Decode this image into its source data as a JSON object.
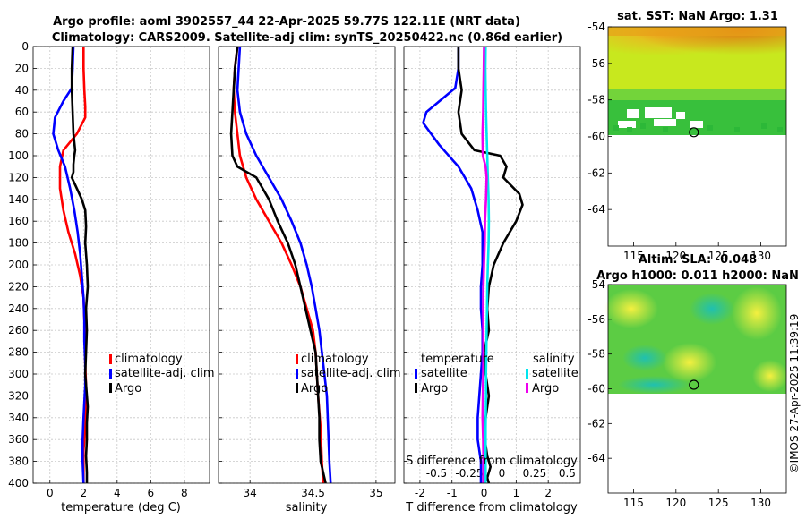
{
  "title_line1": "Argo profile: aoml 3902557_44 22-Apr-2025 59.77S 122.11E (NRT data)",
  "title_line2": "Climatology: CARS2009. Satellite-adj clim: synTS_20250422.nc (0.86d earlier)",
  "footer": "©IMOS 27-Apr-2025 11:39:19",
  "colors": {
    "climatology": "#ff0000",
    "satellite": "#0000ff",
    "argo": "#000000",
    "sal_satellite": "#00e5ee",
    "sal_argo": "#ee00ee"
  },
  "chart_data": [
    {
      "id": "temperature",
      "type": "line",
      "xlabel": "temperature (deg C)",
      "ylabel": "",
      "xlim": [
        -1,
        9.5
      ],
      "ylim": [
        400,
        0
      ],
      "xticks": [
        0,
        2,
        4,
        6,
        8
      ],
      "xtick_labels": [
        "0",
        "2",
        "4",
        "6",
        "8"
      ],
      "yticks": [
        0,
        20,
        40,
        60,
        80,
        100,
        120,
        140,
        160,
        180,
        200,
        220,
        240,
        260,
        280,
        300,
        320,
        340,
        360,
        380,
        400
      ],
      "grid": true,
      "legend": {
        "placement": "right-middle",
        "entries": [
          "climatology",
          "satellite-adj. clim",
          "Argo"
        ]
      },
      "series": [
        {
          "name": "climatology",
          "color": "#ff0000",
          "x": [
            2.0,
            2.0,
            2.05,
            2.1,
            2.1,
            1.6,
            0.8,
            0.6,
            0.6,
            0.8,
            1.1,
            1.5,
            1.8,
            2.0,
            2.05,
            2.1,
            2.1,
            2.15,
            2.15,
            2.1,
            2.05,
            2.0,
            2.0,
            2.0
          ],
          "y": [
            0,
            20,
            40,
            55,
            65,
            80,
            95,
            110,
            130,
            150,
            170,
            190,
            210,
            230,
            250,
            270,
            290,
            310,
            330,
            350,
            360,
            370,
            385,
            400
          ]
        },
        {
          "name": "satellite-adj. clim",
          "color": "#0000ff",
          "x": [
            1.4,
            1.35,
            1.3,
            0.8,
            0.3,
            0.2,
            0.5,
            0.9,
            1.2,
            1.45,
            1.65,
            1.8,
            1.9,
            2.0,
            2.05,
            2.05,
            2.1,
            2.1,
            2.0,
            1.95,
            1.95,
            2.0
          ],
          "y": [
            0,
            20,
            38,
            50,
            65,
            80,
            95,
            110,
            130,
            150,
            170,
            190,
            210,
            230,
            250,
            270,
            290,
            310,
            340,
            360,
            380,
            400
          ]
        },
        {
          "name": "Argo",
          "color": "#000000",
          "x": [
            1.35,
            1.3,
            1.3,
            1.35,
            1.4,
            1.5,
            1.45,
            1.4,
            1.4,
            1.3,
            1.6,
            1.9,
            2.1,
            2.15,
            2.1,
            2.2,
            2.25,
            2.15,
            2.2,
            2.15,
            2.1,
            2.25,
            2.2,
            2.2,
            2.15,
            2.2,
            2.2
          ],
          "y": [
            0,
            20,
            40,
            60,
            80,
            95,
            100,
            108,
            115,
            120,
            130,
            140,
            150,
            165,
            180,
            200,
            220,
            240,
            260,
            280,
            300,
            330,
            345,
            360,
            375,
            390,
            400
          ]
        }
      ]
    },
    {
      "id": "salinity",
      "type": "line",
      "xlabel": "salinity",
      "xlim": [
        33.75,
        35.15
      ],
      "ylim": [
        400,
        0
      ],
      "xticks": [
        34,
        34.5,
        35
      ],
      "xtick_labels": [
        "34",
        "34.5",
        "35"
      ],
      "grid": true,
      "legend": {
        "placement": "right-middle",
        "entries": [
          "climatology",
          "satellite-adj. clim",
          "Argo"
        ]
      },
      "series": [
        {
          "name": "climatology",
          "color": "#ff0000",
          "x": [
            33.9,
            33.88,
            33.87,
            33.88,
            33.9,
            33.92,
            33.97,
            34.05,
            34.15,
            34.25,
            34.33,
            34.4,
            34.45,
            34.5,
            34.52,
            34.53,
            34.54,
            34.56,
            34.57,
            34.58
          ],
          "y": [
            0,
            20,
            40,
            60,
            80,
            100,
            120,
            140,
            160,
            180,
            200,
            220,
            240,
            260,
            280,
            300,
            320,
            350,
            380,
            400
          ]
        },
        {
          "name": "satellite-adj. clim",
          "color": "#0000ff",
          "x": [
            33.92,
            33.91,
            33.9,
            33.92,
            33.97,
            34.05,
            34.15,
            34.25,
            34.33,
            34.4,
            34.45,
            34.49,
            34.52,
            34.55,
            34.57,
            34.59,
            34.61,
            34.62,
            34.63,
            34.64
          ],
          "y": [
            0,
            20,
            40,
            60,
            80,
            100,
            120,
            140,
            160,
            180,
            200,
            220,
            240,
            260,
            280,
            300,
            320,
            350,
            380,
            400
          ]
        },
        {
          "name": "Argo",
          "color": "#000000",
          "x": [
            33.9,
            33.88,
            33.87,
            33.86,
            33.85,
            33.86,
            33.9,
            34.05,
            34.1,
            34.15,
            34.22,
            34.3,
            34.36,
            34.4,
            34.44,
            34.48,
            34.52,
            34.53,
            34.54,
            34.55,
            34.55,
            34.56,
            34.58,
            34.6
          ],
          "y": [
            0,
            20,
            40,
            60,
            80,
            100,
            110,
            120,
            130,
            140,
            160,
            180,
            200,
            220,
            240,
            260,
            280,
            300,
            320,
            340,
            360,
            380,
            390,
            400
          ]
        }
      ]
    },
    {
      "id": "difference",
      "type": "line",
      "xlabel": "T difference from climatology",
      "top_xlabel": "S difference from climatology",
      "xlim": [
        -2.5,
        3
      ],
      "ylim": [
        400,
        0
      ],
      "xticks": [
        -2,
        -1,
        0,
        1,
        2
      ],
      "xtick_labels": [
        "-2",
        "-1",
        "0",
        "1",
        "2"
      ],
      "top_xticks": [
        -0.5,
        -0.25,
        0,
        0.25,
        0.5
      ],
      "top_xtick_labels": [
        "-0.5",
        "-0.25",
        "0",
        "0.25",
        "0.5"
      ],
      "grid": true,
      "legend": {
        "placement": "right-middle",
        "temperature_title": "temperature",
        "salinity_title": "salinity",
        "entries": [
          "satellite",
          "Argo",
          "satellite",
          "Argo"
        ]
      },
      "series": [
        {
          "name": "temperature satellite",
          "color": "#0000ff",
          "x": [
            -0.8,
            -0.8,
            -0.9,
            -1.8,
            -1.9,
            -1.4,
            -0.8,
            -0.4,
            -0.2,
            -0.05,
            -0.05,
            -0.1,
            -0.1,
            -0.05,
            -0.05,
            -0.1,
            -0.15,
            -0.2,
            -0.2,
            -0.1,
            -0.1
          ],
          "y": [
            0,
            20,
            38,
            60,
            70,
            90,
            110,
            130,
            150,
            170,
            200,
            220,
            240,
            260,
            280,
            300,
            320,
            340,
            360,
            380,
            400
          ]
        },
        {
          "name": "temperature Argo",
          "color": "#000000",
          "x": [
            -0.8,
            -0.8,
            -0.7,
            -0.8,
            -0.7,
            -0.3,
            0.5,
            0.7,
            0.6,
            1.1,
            1.2,
            1.0,
            0.6,
            0.3,
            0.15,
            0.1,
            0.15,
            0.0,
            0.05,
            0.15,
            0.05,
            0.0,
            0.05,
            0.1,
            0.2,
            0.1,
            0.15
          ],
          "y": [
            0,
            20,
            40,
            60,
            80,
            95,
            100,
            110,
            120,
            135,
            145,
            160,
            180,
            200,
            220,
            240,
            260,
            280,
            300,
            320,
            340,
            355,
            365,
            375,
            385,
            395,
            400
          ]
        },
        {
          "name": "salinity satellite",
          "color": "#00e5ee",
          "x": [
            0.05,
            0.04,
            0.05,
            0.06,
            0.08,
            0.1,
            0.12,
            0.14,
            0.15,
            0.14,
            0.12,
            0.1,
            0.09,
            0.08,
            0.07,
            0.06,
            0.06,
            0.05,
            0.05,
            0.05
          ],
          "y": [
            0,
            20,
            40,
            60,
            80,
            100,
            120,
            140,
            160,
            180,
            200,
            220,
            240,
            260,
            280,
            300,
            320,
            350,
            380,
            400
          ]
        },
        {
          "name": "salinity Argo",
          "color": "#ee00ee",
          "x": [
            0.0,
            -0.01,
            -0.02,
            -0.03,
            -0.05,
            -0.04,
            0.05,
            0.08,
            0.06,
            0.03,
            0.02,
            0.0,
            -0.02,
            -0.03,
            -0.02,
            -0.02,
            -0.03,
            -0.05,
            -0.03,
            -0.02,
            -0.02
          ],
          "y": [
            0,
            20,
            40,
            60,
            80,
            100,
            110,
            120,
            140,
            160,
            180,
            200,
            220,
            240,
            260,
            280,
            300,
            340,
            360,
            380,
            400
          ]
        }
      ]
    },
    {
      "id": "sst_map",
      "type": "heatmap",
      "title": "sat. SST: NaN Argo: 1.31",
      "xlim": [
        112,
        133
      ],
      "ylim": [
        -66,
        -54
      ],
      "xticks": [
        115,
        120,
        125,
        130
      ],
      "xtick_labels": [
        "115",
        "120",
        "125",
        "130"
      ],
      "yticks": [
        -54,
        -56,
        -58,
        -60,
        -62,
        -64
      ],
      "ytick_labels": [
        "-54",
        "-56",
        "-58",
        "-60",
        "-62",
        "-64"
      ],
      "marker": {
        "lon": 122.11,
        "lat": -59.77
      }
    },
    {
      "id": "sla_map",
      "type": "heatmap",
      "title": "Altim. SLA: -0.048",
      "subtitle": "Argo h1000: 0.011 h2000: NaN",
      "xlim": [
        112,
        133
      ],
      "ylim": [
        -66,
        -54
      ],
      "xticks": [
        115,
        120,
        125,
        130
      ],
      "xtick_labels": [
        "115",
        "120",
        "125",
        "130"
      ],
      "yticks": [
        -54,
        -56,
        -58,
        -60,
        -62,
        -64
      ],
      "ytick_labels": [
        "-54",
        "-56",
        "-58",
        "-60",
        "-62",
        "-64"
      ],
      "marker": {
        "lon": 122.11,
        "lat": -59.77
      }
    }
  ]
}
